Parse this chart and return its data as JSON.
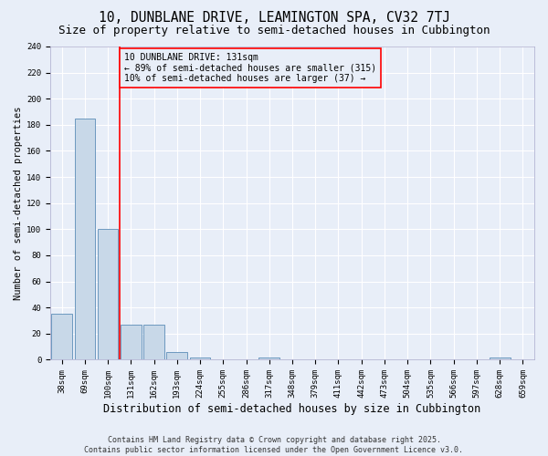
{
  "title": "10, DUNBLANE DRIVE, LEAMINGTON SPA, CV32 7TJ",
  "subtitle": "Size of property relative to semi-detached houses in Cubbington",
  "xlabel": "Distribution of semi-detached houses by size in Cubbington",
  "ylabel": "Number of semi-detached properties",
  "categories": [
    "38sqm",
    "69sqm",
    "100sqm",
    "131sqm",
    "162sqm",
    "193sqm",
    "224sqm",
    "255sqm",
    "286sqm",
    "317sqm",
    "348sqm",
    "379sqm",
    "411sqm",
    "442sqm",
    "473sqm",
    "504sqm",
    "535sqm",
    "566sqm",
    "597sqm",
    "628sqm",
    "659sqm"
  ],
  "values": [
    35,
    185,
    100,
    27,
    27,
    6,
    2,
    0,
    0,
    2,
    0,
    0,
    0,
    0,
    0,
    0,
    0,
    0,
    0,
    2,
    0
  ],
  "bar_color": "#c8d8e8",
  "bar_edge_color": "#5b8db8",
  "red_line_x": 2.5,
  "ylim": [
    0,
    240
  ],
  "yticks": [
    0,
    20,
    40,
    60,
    80,
    100,
    120,
    140,
    160,
    180,
    200,
    220,
    240
  ],
  "legend_text_line1": "10 DUNBLANE DRIVE: 131sqm",
  "legend_text_line2": "← 89% of semi-detached houses are smaller (315)",
  "legend_text_line3": "10% of semi-detached houses are larger (37) →",
  "footer_line1": "Contains HM Land Registry data © Crown copyright and database right 2025.",
  "footer_line2": "Contains public sector information licensed under the Open Government Licence v3.0.",
  "bg_color": "#e8eef8",
  "grid_color": "#ffffff",
  "title_fontsize": 10.5,
  "subtitle_fontsize": 9,
  "ylabel_fontsize": 7.5,
  "xlabel_fontsize": 8.5,
  "tick_fontsize": 6.5,
  "legend_fontsize": 7,
  "footer_fontsize": 6
}
